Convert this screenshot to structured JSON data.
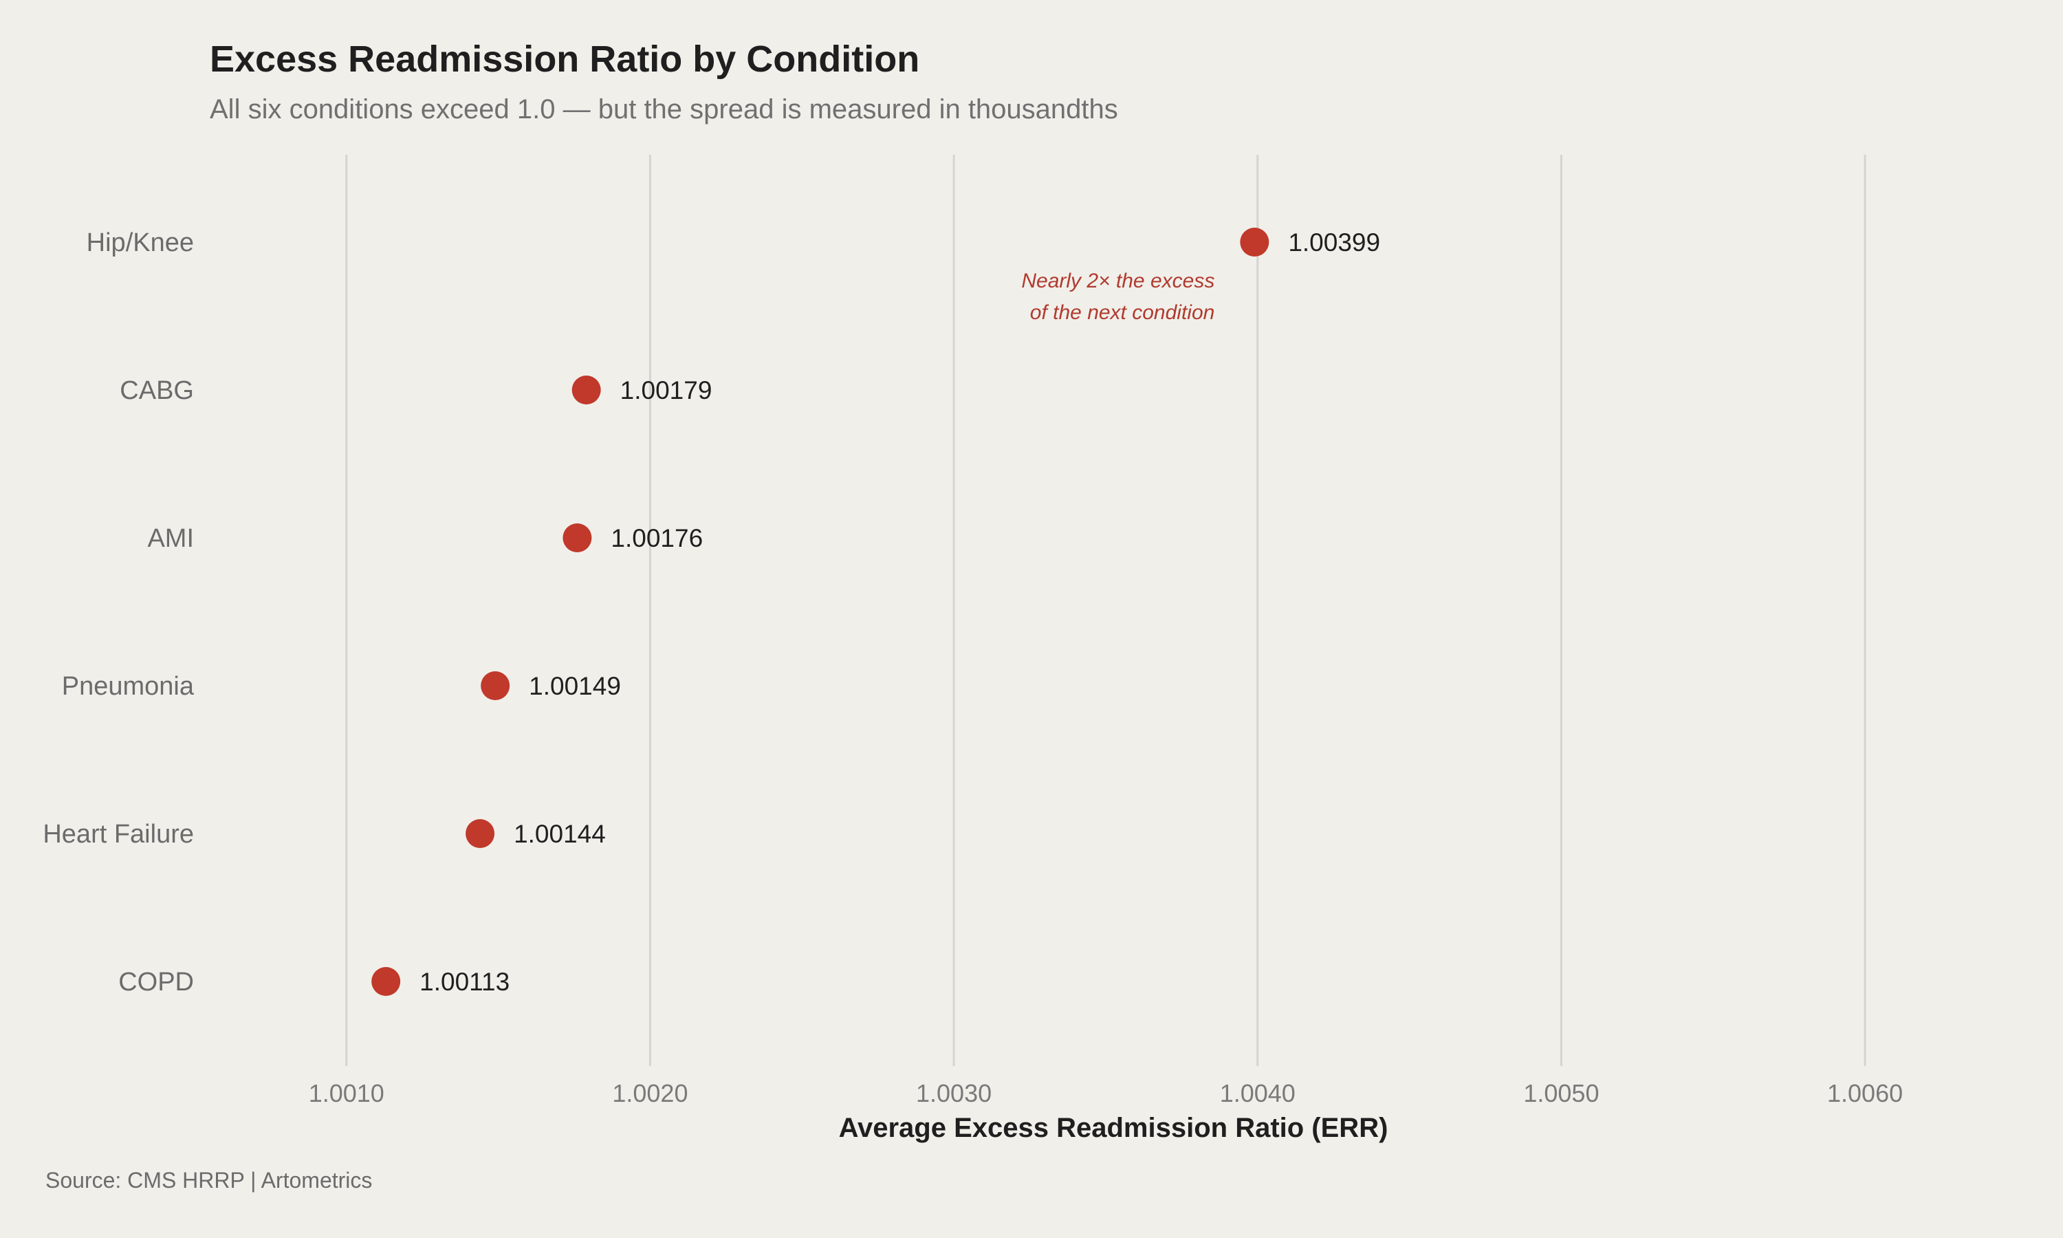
{
  "chart_data": {
    "type": "scatter",
    "title": "Excess Readmission Ratio by Condition",
    "subtitle": "All six conditions exceed 1.0 — but the spread is measured in thousandths",
    "xlabel": "Average Excess Readmission Ratio (ERR)",
    "ylabel": "",
    "xlim": [
      1.00055,
      1.00655
    ],
    "grid": "vertical",
    "colors": {
      "point": "#c0392b",
      "annotation": "#b03a2e"
    },
    "categories": [
      "Hip/Knee",
      "CABG",
      "AMI",
      "Pneumonia",
      "Heart Failure",
      "COPD"
    ],
    "values": [
      1.00399,
      1.00179,
      1.00176,
      1.00149,
      1.00144,
      1.00113
    ],
    "value_labels": [
      "1.00399",
      "1.00179",
      "1.00176",
      "1.00149",
      "1.00144",
      "1.00113"
    ],
    "x_ticks": [
      1.001,
      1.002,
      1.003,
      1.004,
      1.005,
      1.006
    ],
    "x_tick_labels": [
      "1.0010",
      "1.0020",
      "1.0030",
      "1.0040",
      "1.0050",
      "1.0060"
    ],
    "annotation": {
      "category": "Hip/Knee",
      "lines": [
        "Nearly 2× the excess",
        "of the next condition"
      ]
    },
    "source": "Source: CMS HRRP | Artometrics"
  }
}
